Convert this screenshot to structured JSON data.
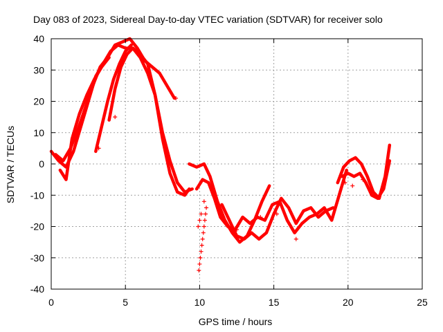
{
  "chart_data": {
    "type": "scatter",
    "title": "Day 083 of 2023, Sidereal Day-to-day VTEC variation (SDTVAR) for receiver solo",
    "xlabel": "GPS time / hours",
    "ylabel": "SDTVAR / TECUs",
    "xlim": [
      0,
      25
    ],
    "ylim": [
      -40,
      40
    ],
    "xticks": [
      "0",
      "5",
      "10",
      "15",
      "20",
      "25"
    ],
    "xtick_values": [
      0,
      5,
      10,
      15,
      20,
      25
    ],
    "yticks": [
      "40",
      "30",
      "20",
      "10",
      "0",
      "-10",
      "-20",
      "-30",
      "-40"
    ],
    "ytick_values": [
      40,
      30,
      20,
      10,
      0,
      -10,
      -20,
      -30,
      -40
    ],
    "grid": true,
    "marker": "+",
    "color": "#ff0000",
    "series": [
      {
        "name": "trace-1",
        "x": [
          0,
          0.5,
          1.0,
          1.5,
          2.0,
          2.5,
          3.0,
          3.5,
          4.0,
          4.5,
          5.0,
          5.5,
          6.0,
          6.5,
          7.0,
          7.5,
          8.0,
          8.5,
          9.0,
          9.5
        ],
        "y": [
          4,
          1,
          -1,
          4,
          12,
          20,
          28,
          32,
          36,
          38,
          37,
          37,
          34,
          29,
          22,
          10,
          1,
          -6,
          -9,
          -8
        ]
      },
      {
        "name": "trace-2",
        "x": [
          0.3,
          0.8,
          1.3,
          1.8,
          2.3,
          2.8,
          3.3,
          3.8,
          4.3,
          4.8,
          5.3,
          5.8,
          6.3,
          6.8,
          7.3,
          7.8,
          8.3
        ],
        "y": [
          3,
          1,
          5,
          11,
          18,
          25,
          31,
          34,
          38,
          39,
          40,
          37,
          33,
          31,
          29,
          25,
          21
        ]
      },
      {
        "name": "trace-3",
        "x": [
          0.6,
          1.0,
          1.4,
          1.9,
          2.4,
          2.9,
          3.4,
          3.9
        ],
        "y": [
          -2,
          -5,
          8,
          16,
          22,
          27,
          31,
          34
        ]
      },
      {
        "name": "trace-4",
        "x": [
          3.0,
          3.4,
          3.8,
          4.2,
          4.6,
          5.0,
          5.4
        ],
        "y": [
          4,
          12,
          20,
          27,
          32,
          36,
          38
        ]
      },
      {
        "name": "trace-5",
        "x": [
          3.9,
          4.3,
          4.7,
          5.1,
          5.5,
          6.0,
          6.5,
          7.0,
          7.5,
          8.0,
          8.5,
          9.0,
          9.3
        ],
        "y": [
          14,
          24,
          31,
          35,
          37,
          35,
          32,
          22,
          8,
          -3,
          -9,
          -10,
          -8
        ]
      },
      {
        "name": "trace-6",
        "x": [
          9.3,
          9.8,
          10.3,
          10.7,
          11.2,
          11.7,
          12.2,
          12.7,
          13.2,
          13.7,
          14.2,
          14.7
        ],
        "y": [
          0,
          -1,
          0,
          -4,
          -12,
          -18,
          -22,
          -25,
          -23,
          -18,
          -12,
          -7
        ]
      },
      {
        "name": "trace-7",
        "x": [
          9.8,
          10.2,
          10.6,
          11.0,
          11.4,
          11.9,
          12.4,
          12.9,
          13.4,
          13.9,
          14.4,
          14.9,
          15.4,
          15.9,
          16.4,
          16.9,
          17.4,
          17.9,
          18.4,
          18.9,
          19.4,
          19.9
        ],
        "y": [
          -8,
          -5,
          -6,
          -11,
          -17,
          -20,
          -21,
          -17,
          -19,
          -17,
          -18,
          -13,
          -12,
          -18,
          -22,
          -19,
          -17,
          -16,
          -14,
          -18,
          -10,
          -2
        ]
      },
      {
        "name": "trace-8",
        "x": [
          11.5,
          12.0,
          12.5,
          13.0,
          13.5,
          14.0,
          14.5,
          15.0,
          15.5,
          16.0,
          16.5,
          17.0,
          17.5,
          18.0,
          18.5,
          19.0
        ],
        "y": [
          -13,
          -18,
          -23,
          -24,
          -22,
          -24,
          -22,
          -16,
          -11,
          -14,
          -19,
          -15,
          -14,
          -17,
          -15,
          -14
        ]
      },
      {
        "name": "trace-9",
        "x": [
          19.3,
          19.7,
          20.1,
          20.5,
          20.9,
          21.3,
          21.7,
          22.1,
          22.5,
          22.8
        ],
        "y": [
          -6,
          -1,
          1,
          2,
          0,
          -4,
          -9,
          -11,
          -4,
          6
        ]
      },
      {
        "name": "trace-10",
        "x": [
          19.6,
          20.0,
          20.4,
          20.8,
          21.2,
          21.6,
          22.0,
          22.4,
          22.8
        ],
        "y": [
          -4,
          -3,
          -4,
          -3,
          -6,
          -10,
          -11,
          -8,
          1
        ]
      }
    ],
    "scatter_points": {
      "x": [
        9.95,
        10.0,
        10.05,
        10.1,
        10.15,
        10.2,
        10.25,
        10.3,
        10.35,
        10.4,
        10.45,
        10.3,
        9.9,
        10.0,
        10.1,
        12.5,
        14.1,
        15.2,
        16.5,
        19.8,
        20.3,
        21.0,
        8.4,
        4.3,
        3.2
      ],
      "y": [
        -34,
        -32,
        -30,
        -28,
        -26,
        -24,
        -22,
        -20,
        -18,
        -16,
        -14,
        -12,
        -20,
        -18,
        -16,
        -21,
        -17,
        -16,
        -24,
        -6,
        -7,
        -5,
        21,
        15,
        5
      ]
    }
  }
}
